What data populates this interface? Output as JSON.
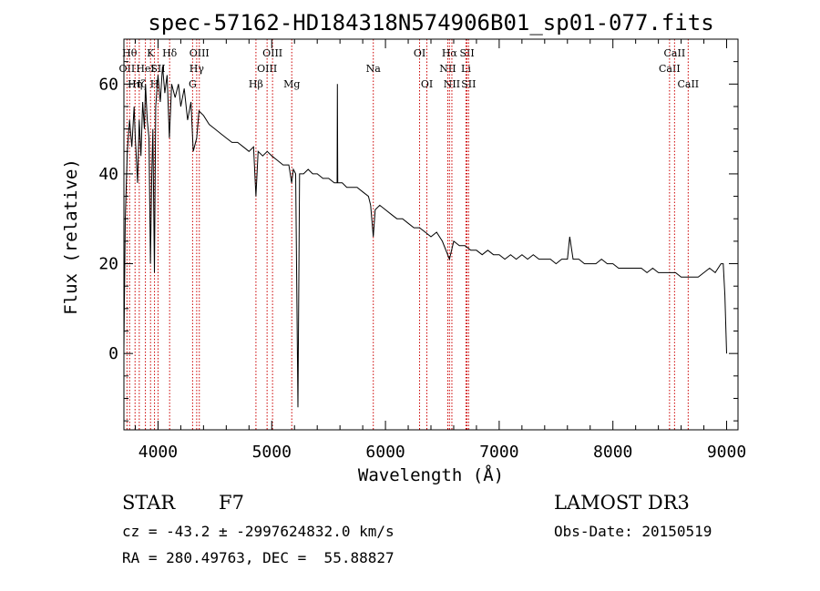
{
  "chart_data": {
    "type": "line",
    "title": "spec-57162-HD184318N574906B01_sp01-077.fits",
    "xlabel": "Wavelength (Å)",
    "ylabel": "Flux (relative)",
    "xlim": [
      3700,
      9100
    ],
    "ylim": [
      -17,
      70
    ],
    "xticks": [
      4000,
      5000,
      6000,
      7000,
      8000,
      9000
    ],
    "yticks": [
      0,
      20,
      40,
      60
    ],
    "grid": false,
    "series": [
      {
        "color": "#000000",
        "points": [
          [
            3700,
            1
          ],
          [
            3712,
            30
          ],
          [
            3730,
            45
          ],
          [
            3750,
            52
          ],
          [
            3770,
            46
          ],
          [
            3790,
            55
          ],
          [
            3800,
            48
          ],
          [
            3820,
            38
          ],
          [
            3835,
            52
          ],
          [
            3850,
            44
          ],
          [
            3865,
            56
          ],
          [
            3880,
            50
          ],
          [
            3890,
            60
          ],
          [
            3905,
            52
          ],
          [
            3920,
            48
          ],
          [
            3933,
            20
          ],
          [
            3945,
            40
          ],
          [
            3955,
            50
          ],
          [
            3968,
            18
          ],
          [
            3980,
            55
          ],
          [
            4000,
            62
          ],
          [
            4020,
            56
          ],
          [
            4040,
            64
          ],
          [
            4060,
            58
          ],
          [
            4080,
            62
          ],
          [
            4100,
            48
          ],
          [
            4120,
            60
          ],
          [
            4150,
            57
          ],
          [
            4180,
            60
          ],
          [
            4200,
            55
          ],
          [
            4230,
            59
          ],
          [
            4260,
            52
          ],
          [
            4290,
            56
          ],
          [
            4310,
            45
          ],
          [
            4340,
            48
          ],
          [
            4360,
            54
          ],
          [
            4400,
            53
          ],
          [
            4450,
            51
          ],
          [
            4500,
            50
          ],
          [
            4550,
            49
          ],
          [
            4600,
            48
          ],
          [
            4650,
            47
          ],
          [
            4700,
            47
          ],
          [
            4750,
            46
          ],
          [
            4800,
            45
          ],
          [
            4840,
            46
          ],
          [
            4861,
            35
          ],
          [
            4880,
            45
          ],
          [
            4920,
            44
          ],
          [
            4960,
            45
          ],
          [
            5000,
            44
          ],
          [
            5050,
            43
          ],
          [
            5100,
            42
          ],
          [
            5150,
            42
          ],
          [
            5175,
            38
          ],
          [
            5190,
            41
          ],
          [
            5210,
            40
          ],
          [
            5230,
            -12
          ],
          [
            5245,
            40
          ],
          [
            5280,
            40
          ],
          [
            5320,
            41
          ],
          [
            5360,
            40
          ],
          [
            5400,
            40
          ],
          [
            5450,
            39
          ],
          [
            5500,
            39
          ],
          [
            5550,
            38
          ],
          [
            5575,
            38
          ],
          [
            5577,
            60
          ],
          [
            5580,
            38
          ],
          [
            5620,
            38
          ],
          [
            5660,
            37
          ],
          [
            5700,
            37
          ],
          [
            5750,
            37
          ],
          [
            5800,
            36
          ],
          [
            5850,
            35
          ],
          [
            5870,
            33
          ],
          [
            5893,
            26
          ],
          [
            5910,
            32
          ],
          [
            5950,
            33
          ],
          [
            6000,
            32
          ],
          [
            6050,
            31
          ],
          [
            6100,
            30
          ],
          [
            6150,
            30
          ],
          [
            6200,
            29
          ],
          [
            6250,
            28
          ],
          [
            6300,
            28
          ],
          [
            6350,
            27
          ],
          [
            6400,
            26
          ],
          [
            6450,
            27
          ],
          [
            6500,
            25
          ],
          [
            6563,
            21
          ],
          [
            6600,
            25
          ],
          [
            6650,
            24
          ],
          [
            6700,
            24
          ],
          [
            6750,
            23
          ],
          [
            6800,
            23
          ],
          [
            6850,
            22
          ],
          [
            6900,
            23
          ],
          [
            6950,
            22
          ],
          [
            7000,
            22
          ],
          [
            7050,
            21
          ],
          [
            7100,
            22
          ],
          [
            7150,
            21
          ],
          [
            7200,
            22
          ],
          [
            7250,
            21
          ],
          [
            7300,
            22
          ],
          [
            7350,
            21
          ],
          [
            7400,
            21
          ],
          [
            7450,
            21
          ],
          [
            7500,
            20
          ],
          [
            7550,
            21
          ],
          [
            7600,
            21
          ],
          [
            7620,
            26
          ],
          [
            7650,
            21
          ],
          [
            7700,
            21
          ],
          [
            7750,
            20
          ],
          [
            7800,
            20
          ],
          [
            7850,
            20
          ],
          [
            7900,
            21
          ],
          [
            7950,
            20
          ],
          [
            8000,
            20
          ],
          [
            8050,
            19
          ],
          [
            8100,
            19
          ],
          [
            8150,
            19
          ],
          [
            8200,
            19
          ],
          [
            8250,
            19
          ],
          [
            8300,
            18
          ],
          [
            8350,
            19
          ],
          [
            8400,
            18
          ],
          [
            8450,
            18
          ],
          [
            8500,
            18
          ],
          [
            8550,
            18
          ],
          [
            8600,
            17
          ],
          [
            8650,
            17
          ],
          [
            8700,
            17
          ],
          [
            8750,
            17
          ],
          [
            8800,
            18
          ],
          [
            8850,
            19
          ],
          [
            8900,
            18
          ],
          [
            8950,
            20
          ],
          [
            8970,
            20
          ],
          [
            8985,
            13
          ],
          [
            9000,
            0
          ]
        ]
      }
    ],
    "line_markers": [
      {
        "wl": 3727,
        "label": "OII",
        "row": 2
      },
      {
        "wl": 3750,
        "label": "Hθ",
        "row": 1
      },
      {
        "wl": 3798,
        "label": "Hη",
        "row": 3
      },
      {
        "wl": 3835,
        "label": "Hζ",
        "row": 3
      },
      {
        "wl": 3889,
        "label": "HeI",
        "row": 2
      },
      {
        "wl": 3934,
        "label": "K",
        "row": 1
      },
      {
        "wl": 3969,
        "label": "H",
        "row": 3
      },
      {
        "wl": 4000,
        "label": "SII",
        "row": 2
      },
      {
        "wl": 4102,
        "label": "Hδ",
        "row": 1
      },
      {
        "wl": 4304,
        "label": "G",
        "row": 3
      },
      {
        "wl": 4340,
        "label": "Hγ",
        "row": 2
      },
      {
        "wl": 4363,
        "label": "OIII",
        "row": 1
      },
      {
        "wl": 4861,
        "label": "Hβ",
        "row": 3
      },
      {
        "wl": 4959,
        "label": "OIII",
        "row": 2
      },
      {
        "wl": 5007,
        "label": "OIII",
        "row": 1
      },
      {
        "wl": 5176,
        "label": "Mg",
        "row": 3
      },
      {
        "wl": 5893,
        "label": "Na",
        "row": 2
      },
      {
        "wl": 6300,
        "label": "OI",
        "row": 1
      },
      {
        "wl": 6364,
        "label": "OI",
        "row": 3
      },
      {
        "wl": 6548,
        "label": "NII",
        "row": 2
      },
      {
        "wl": 6563,
        "label": "Hα",
        "row": 1
      },
      {
        "wl": 6584,
        "label": "NII",
        "row": 3
      },
      {
        "wl": 6708,
        "label": "Li",
        "row": 2
      },
      {
        "wl": 6717,
        "label": "SII",
        "row": 1
      },
      {
        "wl": 6731,
        "label": "SII",
        "row": 3
      },
      {
        "wl": 8498,
        "label": "CaII",
        "row": 2
      },
      {
        "wl": 8542,
        "label": "CaII",
        "row": 1
      },
      {
        "wl": 8662,
        "label": "CaII",
        "row": 3
      }
    ],
    "marker_color": "#cc0000"
  },
  "info": {
    "object_class": "STAR",
    "subclass": "F7",
    "survey": "LAMOST DR3",
    "cz": "cz = -43.2 ± -2997624832.0 km/s",
    "obs_date": "Obs-Date: 20150519",
    "coords": "RA = 280.49763, DEC =  55.88827"
  }
}
